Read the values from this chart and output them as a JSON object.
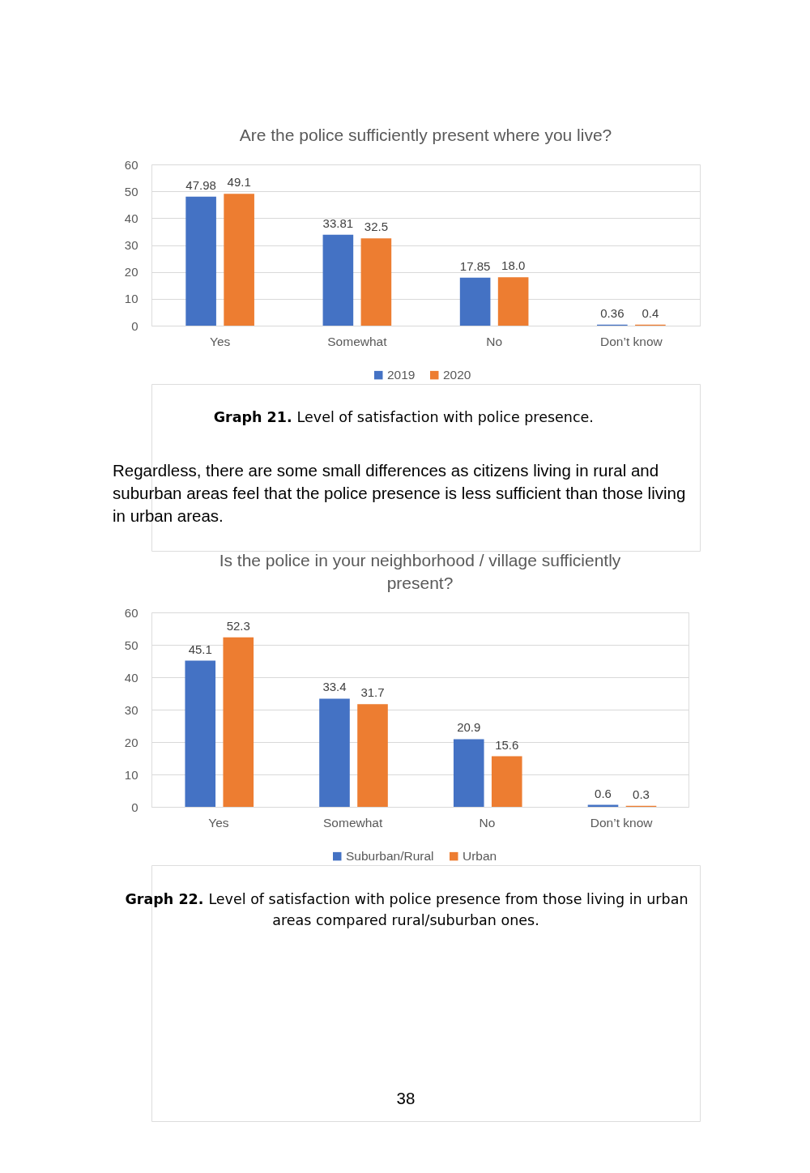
{
  "chart_data": [
    {
      "type": "bar",
      "title": "Are the police sufficiently present where you live?",
      "categories": [
        "Yes",
        "Somewhat",
        "No",
        "Don’t know"
      ],
      "series": [
        {
          "name": "2019",
          "color": "#4472c4",
          "values": [
            47.98,
            33.81,
            17.85,
            0.36
          ],
          "value_labels": [
            "47.98",
            "33.81",
            "17.85",
            "0.36"
          ]
        },
        {
          "name": "2020",
          "color": "#ed7d31",
          "values": [
            49.1,
            32.5,
            18.0,
            0.4
          ],
          "value_labels": [
            "49.1",
            "32.5",
            "18.0",
            "0.4"
          ]
        }
      ],
      "ylim": [
        0,
        60
      ],
      "yticks": [
        0,
        10,
        20,
        30,
        40,
        50,
        60
      ],
      "grid": "y",
      "legend": "bottom",
      "annotations": [
        "Graph 21.",
        "Level of satisfaction with police presence.",
        "Regardless, there are some small differences as citizens living in rural and suburban areas feel that the police presence is less sufficient than those living in urban areas."
      ]
    },
    {
      "type": "bar",
      "title": "Is the police in your neighborhood / village sufficiently present?",
      "categories": [
        "Yes",
        "Somewhat",
        "No",
        "Don’t know"
      ],
      "series": [
        {
          "name": "Suburban/Rural",
          "color": "#4472c4",
          "values": [
            45.1,
            33.4,
            20.9,
            0.6
          ]
        },
        {
          "name": "Urban",
          "color": "#ed7d31",
          "values": [
            52.3,
            31.7,
            15.6,
            0.3
          ]
        }
      ],
      "data_labels": true,
      "ylim": [
        0,
        60
      ],
      "yticks": [
        0,
        10,
        20,
        30,
        40,
        50,
        60
      ],
      "grid": "y",
      "legend": "bottom",
      "annotations": [
        "Graph 22.",
        "Level of satisfaction with police presence from those living in urban areas compared rural/suburban ones.",
        "38"
      ]
    }
  ]
}
